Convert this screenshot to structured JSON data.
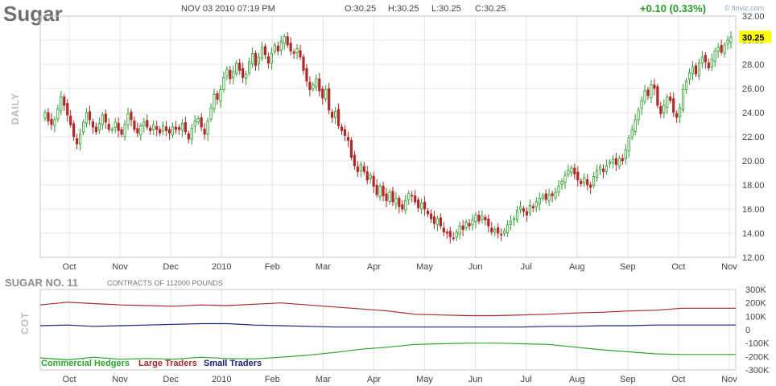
{
  "header": {
    "title": "Sugar",
    "side_label": "DAILY",
    "datetime": "NOV 03 2010 07:19 PM",
    "ohlc": {
      "open": "O:30.25",
      "high": "H:30.25",
      "low": "L:30.25",
      "close": "C:30.25"
    },
    "change": "+0.10 (0.33%)",
    "brand": "finviz.com",
    "last_price": "30.25"
  },
  "colors": {
    "up": "#2a9c2a",
    "down": "#b02a2a",
    "commercial": "#2aa52a",
    "large": "#a52a2a",
    "small": "#1a237e",
    "grid": "#e4e4e4",
    "price_tag": "#ffff00"
  },
  "chart_data": [
    {
      "type": "candlestick",
      "ylim": [
        12.0,
        32.0
      ],
      "y_ticks": [
        "12.00",
        "14.00",
        "16.00",
        "18.00",
        "20.00",
        "22.00",
        "24.00",
        "26.00",
        "28.00",
        "30.00",
        "32.00"
      ],
      "x_ticks": [
        "Oct",
        "Nov",
        "Dec",
        "2010",
        "Feb",
        "Mar",
        "Apr",
        "May",
        "Jun",
        "Jul",
        "Aug",
        "Sep",
        "Oct",
        "Nov"
      ],
      "grid": true,
      "series": [
        {
          "segment": "Sep-Oct 2009",
          "closes": [
            24.0,
            23.3,
            23.0,
            23.4,
            24.3,
            25.3,
            24.6,
            23.8,
            23.0,
            22.0,
            21.4,
            22.2,
            23.2,
            24.0,
            23.4,
            22.8,
            22.4,
            23.1,
            23.8,
            23.2,
            22.6
          ]
        },
        {
          "segment": "Nov 2009",
          "closes": [
            22.6,
            23.2,
            22.5,
            22.2,
            23.0,
            23.9,
            23.4,
            22.6,
            22.3,
            22.9,
            23.2,
            22.8,
            22.5,
            23.0,
            22.6,
            22.3,
            22.9,
            22.5,
            22.3,
            22.8,
            22.6
          ]
        },
        {
          "segment": "Dec 2009",
          "closes": [
            22.6,
            23.1,
            22.4,
            21.8,
            22.7,
            23.3,
            23.5,
            22.8,
            22.2,
            23.3,
            24.4,
            25.5,
            25.1,
            25.9,
            26.9,
            27.6,
            26.8,
            27.4,
            28.1,
            27.5,
            26.9
          ]
        },
        {
          "segment": "Jan 2010",
          "closes": [
            27.2,
            28.2,
            28.9,
            27.9,
            28.6,
            29.4,
            28.8,
            28.1,
            28.9,
            29.6,
            29.1,
            29.9,
            30.3,
            29.6,
            29.1,
            28.9,
            29.3,
            28.6,
            27.5,
            26.6,
            25.9
          ]
        },
        {
          "segment": "Feb 2010",
          "closes": [
            26.3,
            26.8,
            25.8,
            25.2,
            25.9,
            24.2,
            23.6,
            24.1,
            22.9,
            22.5,
            22.1,
            21.7,
            20.3,
            19.6,
            19.1,
            19.7,
            19.1,
            18.4,
            18.8,
            17.9,
            17.2
          ]
        },
        {
          "segment": "Mar 2010",
          "closes": [
            17.9,
            17.1,
            16.7,
            17.4,
            16.6,
            16.9,
            16.2,
            16.0,
            16.7,
            17.3,
            17.1,
            16.6,
            16.1,
            16.5,
            16.0,
            15.6,
            15.2,
            14.8,
            15.2,
            14.6,
            14.1
          ]
        },
        {
          "segment": "Apr-May 2010",
          "closes": [
            14.0,
            13.7,
            13.6,
            14.1,
            14.6,
            14.3,
            14.9,
            14.6,
            15.1,
            15.5,
            15.0,
            15.4,
            15.1,
            14.6,
            14.1,
            14.3,
            14.0,
            13.9,
            14.2,
            14.7,
            15.0
          ]
        },
        {
          "segment": "Jun 2010",
          "closes": [
            15.2,
            15.9,
            16.2,
            15.8,
            15.5,
            16.3,
            16.1,
            16.6,
            16.9,
            17.1,
            16.8,
            17.2,
            17.1,
            17.4,
            17.9,
            18.3,
            18.8,
            19.2,
            19.4,
            18.9,
            18.4
          ]
        },
        {
          "segment": "Jul-Aug 2010",
          "closes": [
            18.1,
            18.6,
            18.0,
            17.8,
            18.7,
            19.2,
            19.5,
            19.1,
            19.6,
            19.9,
            20.1,
            19.7,
            20.2,
            20.0,
            20.9,
            21.9,
            22.6,
            23.4,
            24.2,
            25.0,
            25.8
          ]
        },
        {
          "segment": "Sep 2010",
          "closes": [
            25.4,
            26.3,
            26.0,
            24.6,
            23.9,
            24.6,
            25.3,
            25.0,
            24.0,
            23.6,
            24.4,
            25.9,
            26.6,
            27.3,
            27.8,
            27.2,
            28.1,
            28.6,
            28.2,
            27.7,
            28.4
          ]
        },
        {
          "segment": "Oct-Nov 2010",
          "closes": [
            29.1,
            29.4,
            29.0,
            29.6,
            30.0,
            30.25
          ]
        }
      ]
    },
    {
      "type": "line",
      "title": "SUGAR NO. 11",
      "subtitle": "CONTRACTS OF 112000 POUNDS",
      "side_label": "COT",
      "ylim": [
        -300,
        300
      ],
      "y_ticks": [
        "300K",
        "200K",
        "100K",
        "0",
        "-100K",
        "-200K",
        "-300K"
      ],
      "x_ticks": [
        "Oct",
        "Nov",
        "Dec",
        "2010",
        "Feb",
        "Mar",
        "Apr",
        "May",
        "Jun",
        "Jul",
        "Aug",
        "Sep",
        "Oct",
        "Nov"
      ],
      "series": [
        {
          "name": "Commercial Hedgers",
          "values": [
            -210,
            -225,
            -205,
            -220,
            -215,
            -220,
            -205,
            -215,
            -218,
            -205,
            -190,
            -170,
            -145,
            -130,
            -110,
            -105,
            -100,
            -100,
            -105,
            -110,
            -130,
            -150,
            -165,
            -180,
            -185,
            -185,
            -185
          ]
        },
        {
          "name": "Large Traders",
          "values": [
            185,
            205,
            195,
            185,
            180,
            175,
            185,
            180,
            190,
            200,
            185,
            170,
            155,
            140,
            115,
            110,
            105,
            105,
            110,
            115,
            125,
            130,
            140,
            145,
            160,
            160,
            160
          ]
        },
        {
          "name": "Small Traders",
          "values": [
            30,
            35,
            25,
            30,
            35,
            40,
            45,
            45,
            35,
            30,
            25,
            20,
            20,
            20,
            20,
            20,
            20,
            20,
            20,
            25,
            25,
            30,
            30,
            35,
            35,
            35,
            35
          ]
        }
      ]
    }
  ],
  "legend": {
    "commercial": "Commercial Hedgers",
    "large": "Large Traders",
    "small": "Small Traders"
  }
}
